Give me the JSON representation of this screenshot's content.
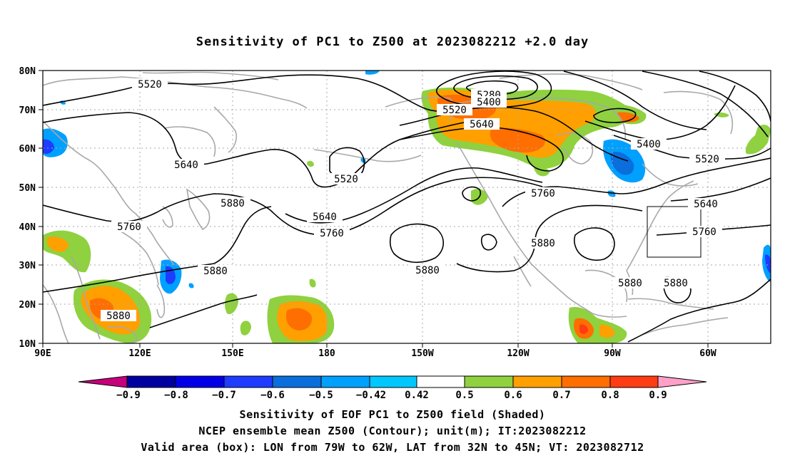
{
  "title": "Sensitivity of PC1 to Z500 at 2023082212 +2.0 day",
  "axes": {
    "lat_labels": [
      "10N",
      "20N",
      "30N",
      "40N",
      "50N",
      "60N",
      "70N",
      "80N"
    ],
    "lon_labels": [
      "90E",
      "120E",
      "150E",
      "180",
      "150W",
      "120W",
      "90W",
      "60W"
    ]
  },
  "contour_labels": [
    {
      "text": "5520"
    },
    {
      "text": "5640"
    },
    {
      "text": "5760"
    },
    {
      "text": "5880"
    },
    {
      "text": "5880"
    },
    {
      "text": "5520"
    },
    {
      "text": "5640"
    },
    {
      "text": "5760"
    },
    {
      "text": "5280"
    },
    {
      "text": "5400"
    },
    {
      "text": "5520"
    },
    {
      "text": "5640"
    },
    {
      "text": "5760"
    },
    {
      "text": "5880"
    },
    {
      "text": "5880"
    },
    {
      "text": "5400"
    },
    {
      "text": "5520"
    },
    {
      "text": "5640"
    },
    {
      "text": "5760"
    },
    {
      "text": "5880"
    },
    {
      "text": "5880"
    },
    {
      "text": "5880"
    }
  ],
  "colorbar": {
    "colors": [
      "#c4007b",
      "#0000a0",
      "#0000e6",
      "#1e3cff",
      "#0a6edc",
      "#00a0ff",
      "#00c8ff",
      "#ffffff",
      "#8fd13f",
      "#ffa000",
      "#ff6e00",
      "#ff3c14",
      "#ff0000",
      "#ffa0c8"
    ],
    "labels": [
      "−0.9",
      "−0.8",
      "−0.7",
      "−0.6",
      "−0.5",
      "−0.42",
      "0.42",
      "0.5",
      "0.6",
      "0.7",
      "0.8",
      "0.9"
    ]
  },
  "captions": [
    "Sensitivity of EOF PC1 to Z500 field (Shaded)",
    "NCEP ensemble mean Z500 (Contour); unit(m); IT:2023082212",
    "Valid area (box): LON from 79W to 62W, LAT from 32N to 45N; VT: 2023082712"
  ]
}
